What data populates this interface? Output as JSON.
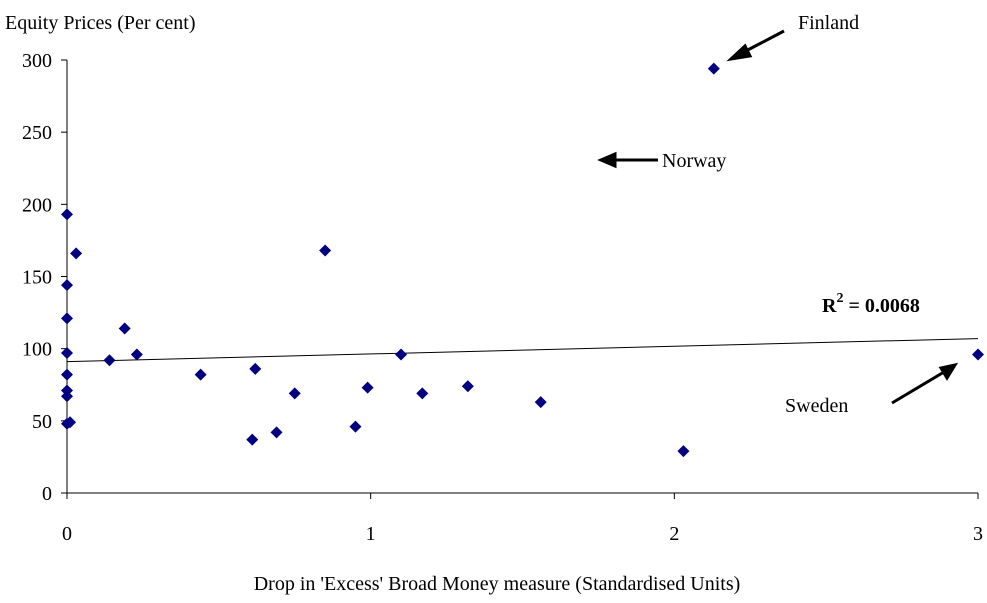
{
  "chart_data": {
    "type": "scatter",
    "title": "Equity Prices (Per cent)",
    "x_label": "Drop in 'Excess' Broad Money measure (Standardised Units)",
    "xlim": [
      0,
      3
    ],
    "xticks": [
      0,
      1,
      2,
      3
    ],
    "ylim": [
      0,
      300
    ],
    "yticks": [
      0,
      50,
      100,
      150,
      200,
      250,
      300
    ],
    "grid": false,
    "color": "#000080",
    "x": [
      0,
      0.03,
      0,
      0,
      0,
      0,
      0,
      0,
      0.01,
      0,
      0.14,
      0.19,
      0.23,
      0.44,
      0.61,
      0.62,
      0.69,
      0.75,
      0.85,
      0.95,
      0.99,
      1.1,
      1.17,
      1.32,
      1.56,
      2.03,
      2.13,
      3.0
    ],
    "y": [
      193,
      166,
      144,
      121,
      97,
      82,
      71,
      67,
      49,
      48,
      92,
      114,
      96,
      82,
      37,
      86,
      42,
      69,
      168,
      46,
      73,
      96,
      69,
      74,
      63,
      29,
      294,
      96
    ],
    "trendline": {
      "x": [
        0,
        3
      ],
      "y": [
        91,
        107
      ]
    },
    "r_squared": {
      "base": "R",
      "sup": "2",
      "rest": " = 0.0068"
    },
    "annotations": [
      "Finland",
      "Norway",
      "Sweden"
    ]
  }
}
